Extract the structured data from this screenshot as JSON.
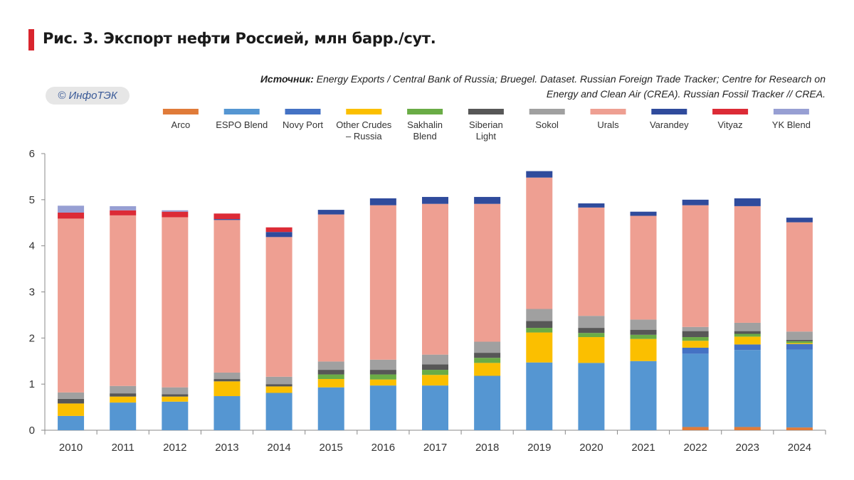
{
  "title": "Рис. 3. Экспорт нефти Россией, млн барр./сут.",
  "source_label": "Источник:",
  "source_text": " Energy Exports / Central Bank of Russia; Bruegel. Dataset. Russian Foreign Trade Tracker; Centre for Research on Energy and Clean Air (CREA). Russian Fossil Tracker // CREA.",
  "watermark": "© ИнфоТЭК",
  "chart_data": {
    "type": "bar",
    "stacked": true,
    "title": "Рис. 3. Экспорт нефти Россией, млн барр./сут.",
    "xlabel": "",
    "ylabel": "",
    "ylim": [
      0,
      6
    ],
    "yticks": [
      0,
      1,
      2,
      3,
      4,
      5,
      6
    ],
    "grid": false,
    "legend_position": "top",
    "categories": [
      "2010",
      "2011",
      "2012",
      "2013",
      "2014",
      "2015",
      "2016",
      "2017",
      "2018",
      "2019",
      "2020",
      "2021",
      "2022",
      "2023",
      "2024"
    ],
    "series": [
      {
        "name": "Arco",
        "legend": [
          "Arco"
        ],
        "color": "#e07b39",
        "values": [
          0,
          0,
          0,
          0,
          0,
          0,
          0,
          0,
          0,
          0,
          0,
          0,
          0.07,
          0.07,
          0.06
        ]
      },
      {
        "name": "ESPO Blend",
        "legend": [
          "ESPO Blend"
        ],
        "color": "#5596d2",
        "values": [
          0.31,
          0.6,
          0.62,
          0.74,
          0.81,
          0.93,
          0.97,
          0.97,
          1.18,
          1.47,
          1.46,
          1.5,
          1.59,
          1.67,
          1.69
        ]
      },
      {
        "name": "Novy Port",
        "legend": [
          "Novy Port"
        ],
        "color": "#4472c4",
        "values": [
          0,
          0,
          0,
          0,
          0,
          0,
          0,
          0,
          0,
          0,
          0,
          0,
          0.13,
          0.12,
          0.12
        ]
      },
      {
        "name": "Other Crudes – Russia",
        "legend": [
          "Other Crudes",
          "– Russia"
        ],
        "color": "#fbbf00",
        "values": [
          0.27,
          0.13,
          0.11,
          0.32,
          0.14,
          0.18,
          0.13,
          0.23,
          0.28,
          0.65,
          0.56,
          0.48,
          0.15,
          0.17,
          0.02
        ]
      },
      {
        "name": "Sakhalin Blend",
        "legend": [
          "Sakhalin",
          "Blend"
        ],
        "color": "#6aac46",
        "values": [
          0,
          0,
          0,
          0,
          0,
          0.1,
          0.11,
          0.11,
          0.11,
          0.1,
          0.09,
          0.09,
          0.08,
          0.06,
          0.04
        ]
      },
      {
        "name": "Siberian Light",
        "legend": [
          "Siberian",
          "Light"
        ],
        "color": "#575757",
        "values": [
          0.1,
          0.07,
          0.05,
          0.05,
          0.05,
          0.1,
          0.1,
          0.12,
          0.11,
          0.15,
          0.11,
          0.11,
          0.13,
          0.06,
          0.03
        ]
      },
      {
        "name": "Sokol",
        "legend": [
          "Sokol"
        ],
        "color": "#a0a0a0",
        "values": [
          0.14,
          0.16,
          0.15,
          0.14,
          0.16,
          0.18,
          0.22,
          0.21,
          0.24,
          0.26,
          0.26,
          0.22,
          0.09,
          0.18,
          0.18
        ]
      },
      {
        "name": "Urals",
        "legend": [
          "Urals"
        ],
        "color": "#ee9f92",
        "values": [
          3.77,
          3.7,
          3.69,
          3.31,
          3.03,
          3.19,
          3.35,
          3.27,
          2.99,
          2.85,
          2.35,
          2.25,
          2.64,
          2.53,
          2.37
        ]
      },
      {
        "name": "Varandey",
        "legend": [
          "Varandey"
        ],
        "color": "#2f4b9c",
        "values": [
          0,
          0,
          0,
          0.02,
          0.11,
          0.1,
          0.15,
          0.15,
          0.15,
          0.14,
          0.09,
          0.09,
          0.12,
          0.17,
          0.1
        ]
      },
      {
        "name": "Vityaz",
        "legend": [
          "Vityaz"
        ],
        "color": "#dc2b36",
        "values": [
          0.13,
          0.11,
          0.12,
          0.12,
          0.1,
          0,
          0,
          0,
          0,
          0,
          0,
          0,
          0,
          0,
          0
        ]
      },
      {
        "name": "YK Blend",
        "legend": [
          "YK Blend"
        ],
        "color": "#979fd3",
        "values": [
          0.15,
          0.09,
          0.03,
          0,
          0,
          0,
          0,
          0,
          0,
          0,
          0,
          0,
          0,
          0,
          0
        ]
      }
    ]
  }
}
